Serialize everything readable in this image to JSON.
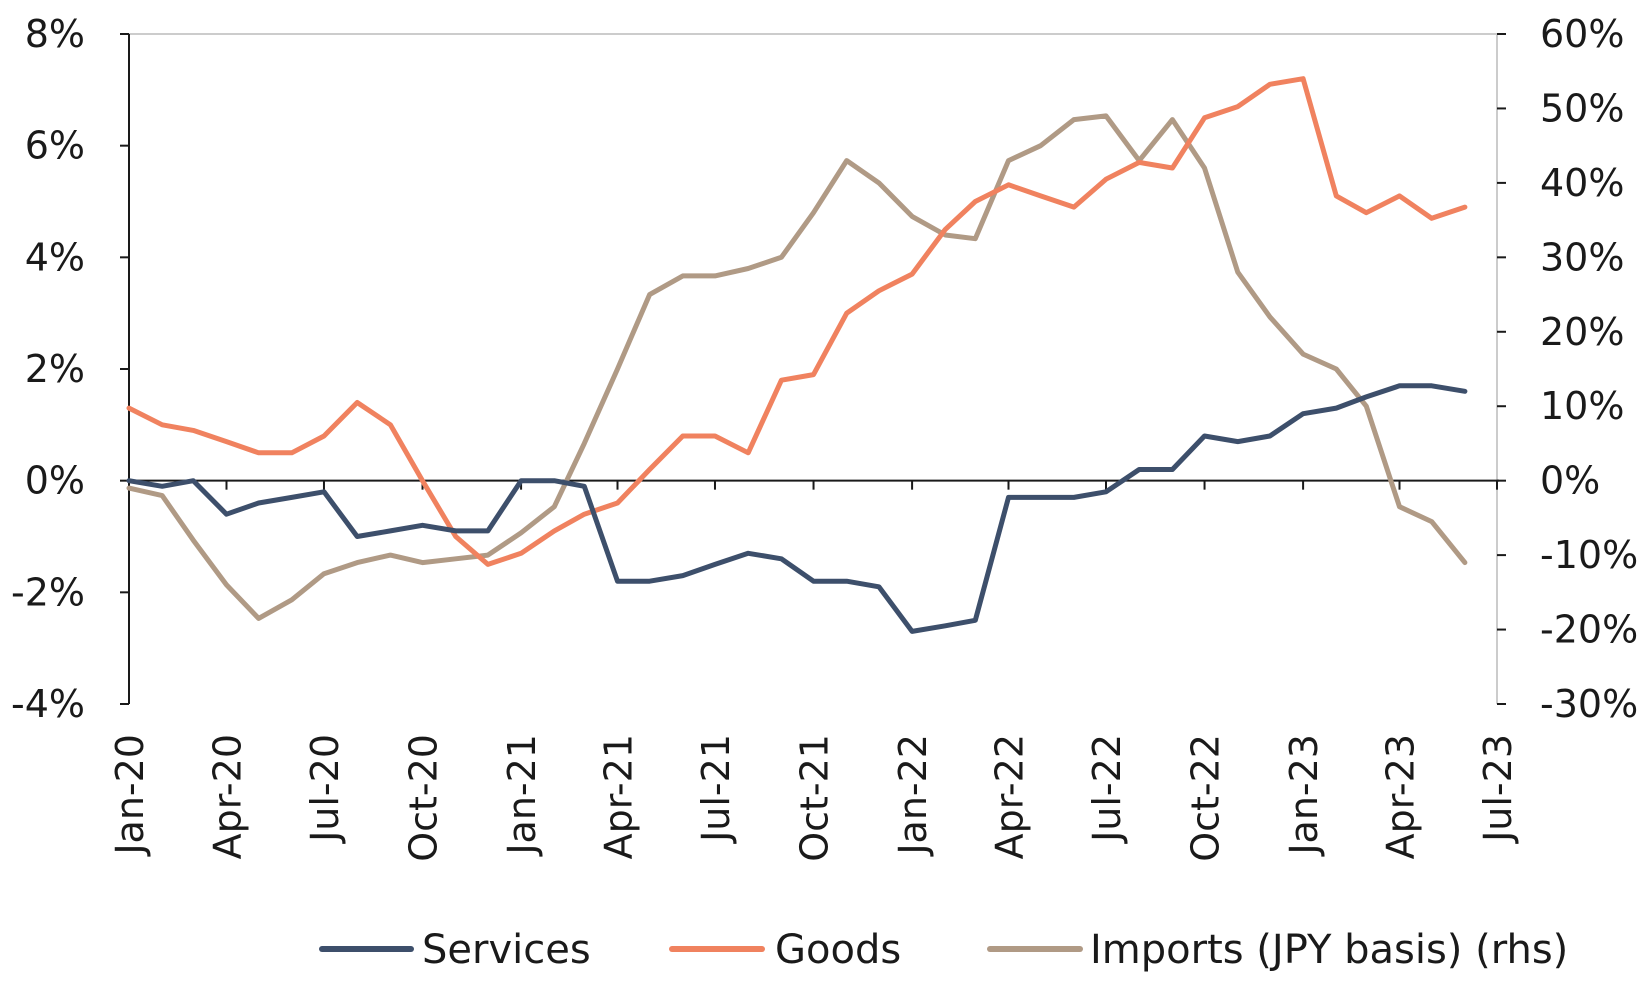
{
  "chart_data": {
    "type": "line",
    "title": "",
    "xlabel": "",
    "ylabel": "",
    "y_left": {
      "lim": [
        -4,
        8
      ],
      "ticks": [
        8,
        6,
        4,
        2,
        0,
        -2,
        -4
      ],
      "tick_labels": [
        "8%",
        "6%",
        "4%",
        "2%",
        "0%",
        "-2%",
        "-4%"
      ]
    },
    "y_right": {
      "lim": [
        -30,
        60
      ],
      "ticks": [
        60,
        50,
        40,
        30,
        20,
        10,
        0,
        -10,
        -20,
        -30
      ],
      "tick_labels": [
        "60%",
        "50%",
        "40%",
        "30%",
        "20%",
        "10%",
        "0%",
        "-10%",
        "-20%",
        "-30%"
      ]
    },
    "x_ticks": [
      "Jan-20",
      "Apr-20",
      "Jul-20",
      "Oct-20",
      "Jan-21",
      "Apr-21",
      "Jul-21",
      "Oct-21",
      "Jan-22",
      "Apr-22",
      "Jul-22",
      "Oct-22",
      "Jan-23",
      "Apr-23",
      "Jul-23"
    ],
    "x_months": [
      "Jan-20",
      "Feb-20",
      "Mar-20",
      "Apr-20",
      "May-20",
      "Jun-20",
      "Jul-20",
      "Aug-20",
      "Sep-20",
      "Oct-20",
      "Nov-20",
      "Dec-20",
      "Jan-21",
      "Feb-21",
      "Mar-21",
      "Apr-21",
      "May-21",
      "Jun-21",
      "Jul-21",
      "Aug-21",
      "Sep-21",
      "Oct-21",
      "Nov-21",
      "Dec-21",
      "Jan-22",
      "Feb-22",
      "Mar-22",
      "Apr-22",
      "May-22",
      "Jun-22",
      "Jul-22",
      "Aug-22",
      "Sep-22",
      "Oct-22",
      "Nov-22",
      "Dec-22",
      "Jan-23",
      "Feb-23",
      "Mar-23",
      "Apr-23",
      "May-23",
      "Jun-23"
    ],
    "grid": false,
    "legend_position": "bottom",
    "series": [
      {
        "name": "Services",
        "axis": "left",
        "color": "#3d4f6b",
        "values": [
          0.0,
          -0.1,
          0.0,
          -0.6,
          -0.4,
          -0.3,
          -0.2,
          -1.0,
          -0.9,
          -0.8,
          -0.9,
          -0.9,
          0.0,
          0.0,
          -0.1,
          -1.8,
          -1.8,
          -1.7,
          -1.5,
          -1.3,
          -1.4,
          -1.8,
          -1.8,
          -1.9,
          -2.7,
          -2.6,
          -2.5,
          -0.3,
          -0.3,
          -0.3,
          -0.2,
          0.2,
          0.2,
          0.8,
          0.7,
          0.8,
          1.2,
          1.3,
          1.5,
          1.7,
          1.7,
          1.6
        ]
      },
      {
        "name": "Goods",
        "axis": "left",
        "color": "#f0825f",
        "values": [
          1.3,
          1.0,
          0.9,
          0.7,
          0.5,
          0.5,
          0.8,
          1.4,
          1.0,
          0.0,
          -1.0,
          -1.5,
          -1.3,
          -0.9,
          -0.6,
          -0.4,
          0.2,
          0.8,
          0.8,
          0.5,
          1.8,
          1.9,
          3.0,
          3.4,
          3.7,
          4.5,
          5.0,
          5.3,
          5.1,
          4.9,
          5.4,
          5.7,
          5.6,
          6.5,
          6.7,
          7.1,
          7.2,
          5.1,
          4.8,
          5.1,
          4.7,
          4.9
        ]
      },
      {
        "name": "Imports (JPY basis) (rhs)",
        "axis": "right",
        "color": "#b09a85",
        "values": [
          -1,
          -2,
          -8,
          -14,
          -18.5,
          -16,
          -12.5,
          -11,
          -10,
          -11,
          -10.5,
          -10,
          -7,
          -3.5,
          5,
          15,
          25,
          27.5,
          27.5,
          28.5,
          30,
          36,
          43,
          40,
          35.5,
          33,
          32.5,
          43,
          45,
          48.5,
          49,
          43,
          48.5,
          42,
          28,
          22,
          17,
          15,
          10,
          -3.5,
          -5.5,
          -11
        ]
      }
    ]
  }
}
